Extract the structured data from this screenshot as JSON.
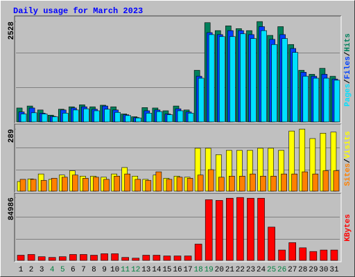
{
  "title": "Daily usage for March 2023",
  "separator": "/",
  "chart_data": [
    {
      "type": "bar",
      "ylim": [
        0,
        2600
      ],
      "yticks": [
        2528
      ],
      "series": [
        {
          "name": "Hits",
          "color": "#00805c",
          "values": [
            350,
            400,
            300,
            170,
            320,
            380,
            430,
            380,
            420,
            380,
            200,
            130,
            360,
            350,
            280,
            400,
            300,
            1300,
            2500,
            2300,
            2420,
            2350,
            2300,
            2528,
            2180,
            2400,
            1950,
            1300,
            1200,
            1350,
            1150
          ]
        },
        {
          "name": "Files",
          "color": "#0040ff",
          "values": [
            250,
            350,
            220,
            140,
            300,
            350,
            380,
            320,
            400,
            300,
            180,
            110,
            280,
            300,
            200,
            330,
            250,
            1150,
            2250,
            2200,
            2300,
            2300,
            2200,
            2400,
            2080,
            2200,
            1850,
            1250,
            1150,
            1200,
            1080
          ]
        },
        {
          "name": "Pages",
          "color": "#00e0ff",
          "values": [
            200,
            230,
            200,
            130,
            220,
            300,
            330,
            280,
            320,
            240,
            160,
            100,
            220,
            260,
            180,
            280,
            220,
            1100,
            2200,
            2150,
            2150,
            2220,
            2100,
            2300,
            1950,
            2100,
            1750,
            1150,
            1100,
            1100,
            1050
          ]
        }
      ]
    },
    {
      "type": "bar",
      "ylim": [
        0,
        300
      ],
      "yticks": [
        289
      ],
      "series": [
        {
          "name": "Visits",
          "color": "#ffff00",
          "values": [
            45,
            57,
            80,
            55,
            75,
            95,
            70,
            70,
            65,
            80,
            110,
            70,
            55,
            75,
            60,
            70,
            65,
            200,
            200,
            170,
            190,
            190,
            190,
            200,
            200,
            190,
            280,
            289,
            245,
            270,
            275
          ]
        },
        {
          "name": "Sites",
          "color": "#ff8000",
          "values": [
            55,
            55,
            50,
            60,
            65,
            75,
            60,
            65,
            55,
            70,
            80,
            55,
            50,
            90,
            55,
            65,
            60,
            75,
            100,
            65,
            70,
            70,
            80,
            70,
            70,
            80,
            80,
            90,
            80,
            95,
            95
          ]
        }
      ]
    },
    {
      "type": "bar",
      "ylim": [
        0,
        87000
      ],
      "yticks": [
        84986
      ],
      "series": [
        {
          "name": "KBytes",
          "color": "#ff0000",
          "values": [
            7000,
            8000,
            5000,
            4000,
            5000,
            8000,
            8000,
            7000,
            9000,
            9000,
            4000,
            3000,
            7000,
            7000,
            6000,
            6000,
            6000,
            22000,
            82000,
            81000,
            84000,
            84986,
            84000,
            84000,
            45000,
            14000,
            24000,
            17000,
            12000,
            14000,
            14000
          ]
        }
      ],
      "categories": [
        "1",
        "2",
        "3",
        "4",
        "5",
        "6",
        "7",
        "8",
        "9",
        "10",
        "11",
        "12",
        "13",
        "14",
        "15",
        "16",
        "17",
        "18",
        "19",
        "20",
        "21",
        "22",
        "23",
        "24",
        "25",
        "26",
        "27",
        "28",
        "29",
        "30",
        "31"
      ],
      "x_label_colors": [
        "#000000",
        "#000000",
        "#000000",
        "#008040",
        "#008040",
        "#000000",
        "#000000",
        "#000000",
        "#000000",
        "#000000",
        "#008040",
        "#008040",
        "#000000",
        "#000000",
        "#000000",
        "#000000",
        "#000000",
        "#008040",
        "#008040",
        "#000000",
        "#000000",
        "#000000",
        "#000000",
        "#000000",
        "#008040",
        "#008040",
        "#000000",
        "#000000",
        "#000000",
        "#000000",
        "#000000"
      ]
    }
  ]
}
